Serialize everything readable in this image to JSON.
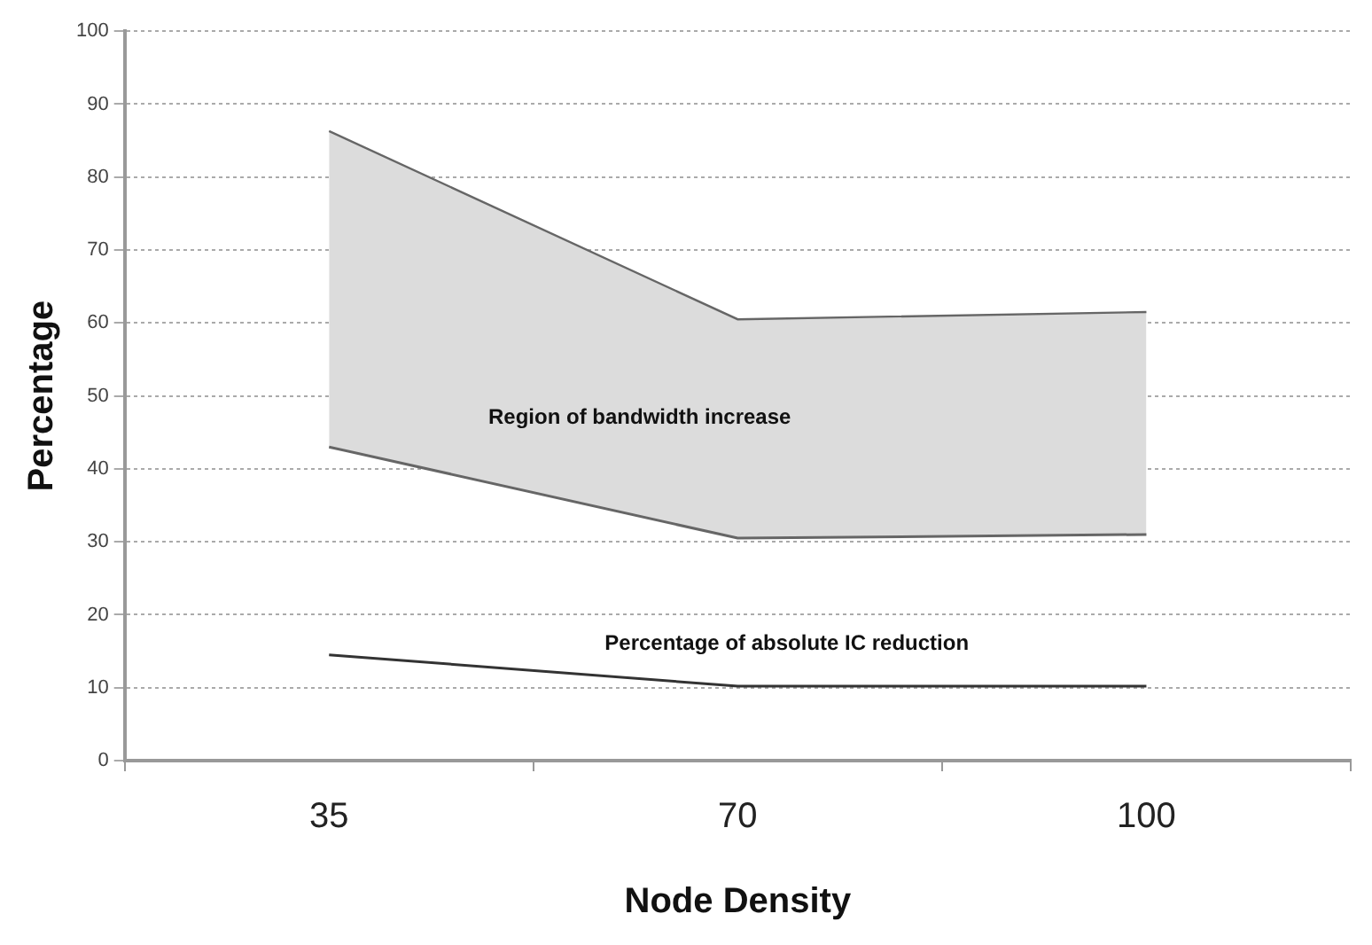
{
  "chart_data": {
    "type": "line",
    "xlabel": "Node Density",
    "ylabel": "Percentage",
    "categories": [
      "35",
      "70",
      "100"
    ],
    "series": [
      {
        "type": "line",
        "color": "#666666",
        "values": [
          43,
          30.5,
          31
        ]
      },
      {
        "type": "area",
        "color": "#dcdcdc",
        "values": [
          86.3,
          60.5,
          61.5
        ]
      },
      {
        "color": "#333333",
        "values": [
          14.5,
          10.2,
          10.2
        ]
      }
    ],
    "ylim": [
      0,
      100
    ],
    "yticks": [
      0,
      10,
      20,
      30,
      40,
      50,
      60,
      70,
      80,
      90,
      100
    ],
    "grid": "y",
    "legend": false,
    "annotations": [
      "Region of bandwidth increase",
      "Percentage of absolute IC reduction"
    ]
  }
}
